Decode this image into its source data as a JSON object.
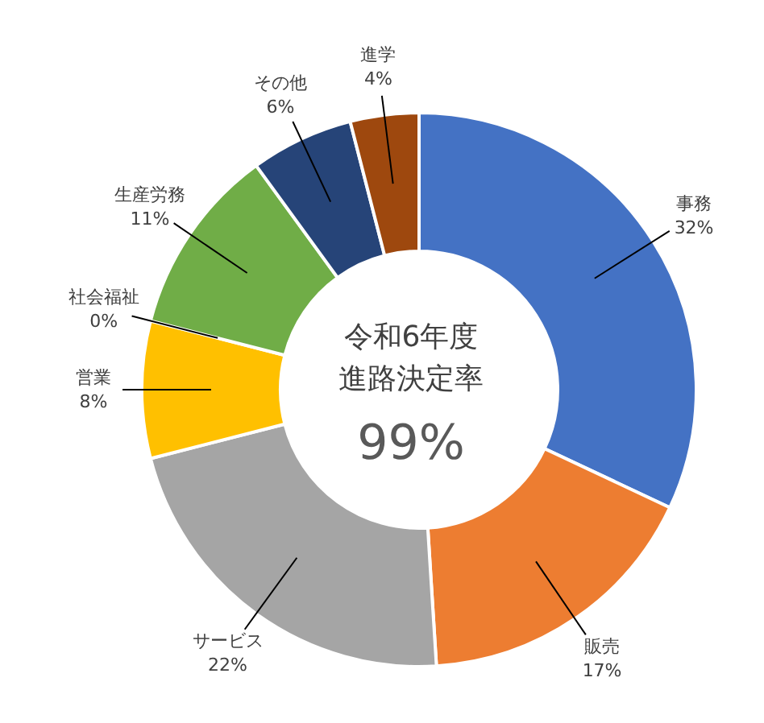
{
  "chart_data": {
    "type": "donut",
    "categories": [
      "事務",
      "販売",
      "サービス",
      "営業",
      "社会福祉",
      "生産労務",
      "その他",
      "進学"
    ],
    "values": [
      32,
      17,
      22,
      8,
      0,
      11,
      6,
      4
    ],
    "value_labels": [
      "32%",
      "17%",
      "22%",
      "8%",
      "0%",
      "11%",
      "6%",
      "4%"
    ],
    "colors": [
      "#4472c4",
      "#ed7d31",
      "#a5a5a5",
      "#ffc000",
      "#5b9bd5",
      "#70ad47",
      "#264478",
      "#9e480e"
    ],
    "annotations": [
      "令和6年度",
      "進路決定率",
      "99%"
    ]
  }
}
